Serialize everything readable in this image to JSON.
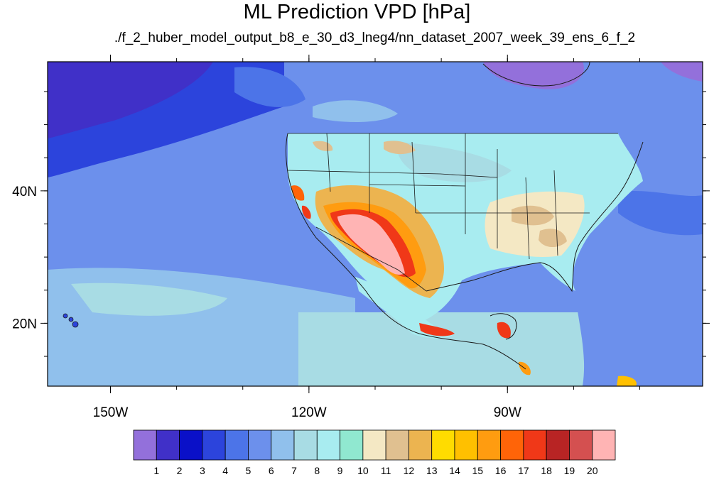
{
  "title": "ML Prediction VPD [hPa]",
  "subtitle": "./f_2_huber_model_output_b8_e_30_d3_lneg4/nn_dataset_2007_week_39_ens_6_f_2",
  "axes": {
    "lon_ticks": [
      {
        "value": -150,
        "label": "150W"
      },
      {
        "value": -120,
        "label": "120W"
      },
      {
        "value": -90,
        "label": "90W"
      }
    ],
    "lat_ticks": [
      {
        "value": 40,
        "label": "40N"
      },
      {
        "value": 20,
        "label": "20N"
      }
    ],
    "lon_range": [
      -159.5,
      -60.5
    ],
    "lat_range": [
      10.5,
      59.5
    ]
  },
  "colorbar": {
    "labels": [
      "1",
      "2",
      "3",
      "4",
      "5",
      "6",
      "7",
      "8",
      "9",
      "10",
      "11",
      "12",
      "13",
      "14",
      "15",
      "16",
      "17",
      "18",
      "19",
      "20"
    ],
    "colors": [
      "#9370db",
      "#4030c8",
      "#0a10c8",
      "#2c44dc",
      "#4c74e8",
      "#6c90ec",
      "#90c0ec",
      "#a8dce4",
      "#a8ecf0",
      "#90e8d0",
      "#f4e8c4",
      "#e0c090",
      "#ecb450",
      "#ffdc00",
      "#ffc000",
      "#ff9c10",
      "#ff6408",
      "#f03818",
      "#b82424",
      "#d45050",
      "#ffb4b4"
    ]
  }
}
